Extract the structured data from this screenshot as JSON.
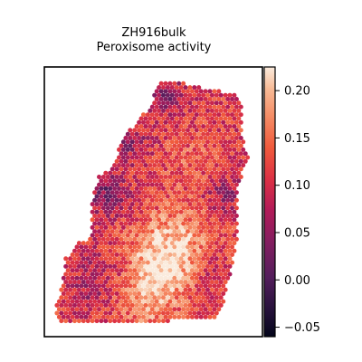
{
  "chart_data": {
    "type": "heatmap",
    "title": "ZH916bulk",
    "subtitle": "Peroxisome activity",
    "xlabel": "",
    "ylabel": "",
    "axis_ticks": false,
    "colorbar": {
      "position": "right",
      "colormap": "rocket",
      "vmin": -0.06,
      "vmax": 0.225,
      "ticks": [
        -0.05,
        0.0,
        0.05,
        0.1,
        0.15,
        0.2
      ],
      "tick_labels": [
        "−0.05",
        "0.00",
        "0.05",
        "0.10",
        "0.15",
        "0.20"
      ]
    },
    "value_regions": [
      {
        "region": "top tip",
        "value": 0.04
      },
      {
        "region": "upper-left edge",
        "value": 0.0
      },
      {
        "region": "left bulge",
        "value": 0.02
      },
      {
        "region": "upper middle",
        "value": 0.12
      },
      {
        "region": "right edge",
        "value": 0.07
      },
      {
        "region": "lower center",
        "value": 0.19
      },
      {
        "region": "bottom edge",
        "value": 0.1
      }
    ]
  }
}
